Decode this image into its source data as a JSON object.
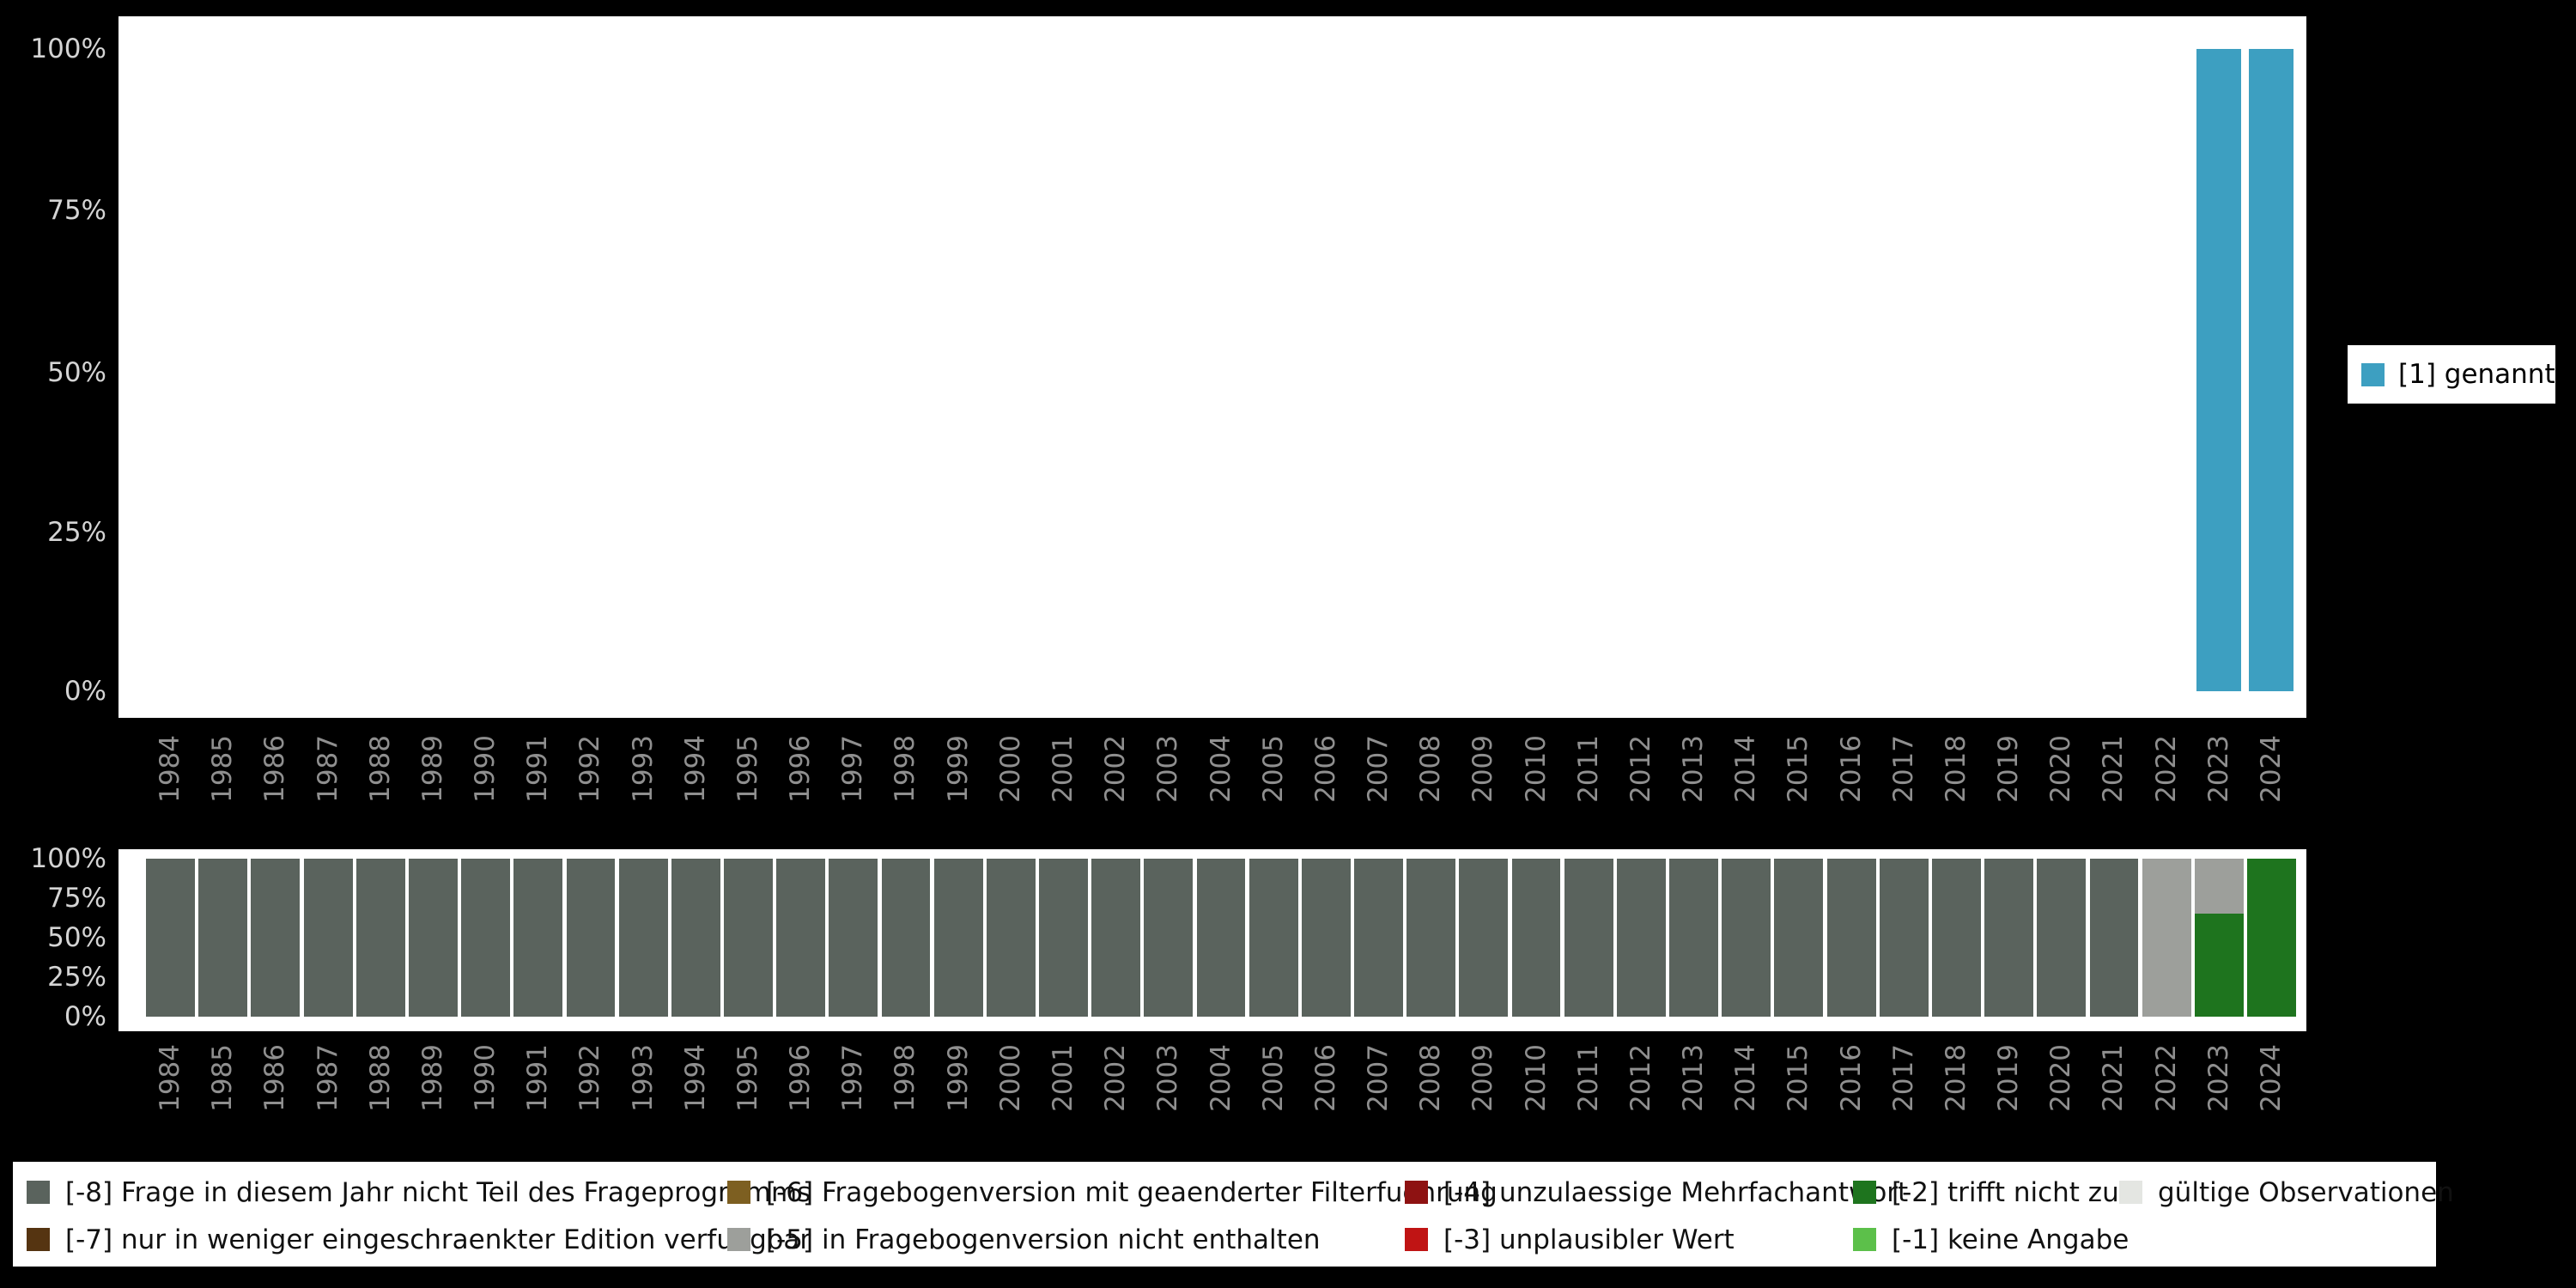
{
  "colors": {
    "background": "#000000",
    "panel": "#ffffff",
    "axis_text": "#d4d4d4",
    "year_text": "#8f8f8f"
  },
  "years": [
    "1984",
    "1985",
    "1986",
    "1987",
    "1988",
    "1989",
    "1990",
    "1991",
    "1992",
    "1993",
    "1994",
    "1995",
    "1996",
    "1997",
    "1998",
    "1999",
    "2000",
    "2001",
    "2002",
    "2003",
    "2004",
    "2005",
    "2006",
    "2007",
    "2008",
    "2009",
    "2010",
    "2011",
    "2012",
    "2013",
    "2014",
    "2015",
    "2016",
    "2017",
    "2018",
    "2019",
    "2020",
    "2021",
    "2022",
    "2023",
    "2024"
  ],
  "y_ticks": [
    "100%",
    "75%",
    "50%",
    "25%",
    "0%"
  ],
  "legend_top": {
    "label": "[1] genannt",
    "color": "#3d9fc1"
  },
  "legend_bottom": {
    "items": [
      {
        "key": "minus-8",
        "label": "[-8] Frage in diesem Jahr nicht Teil des Frageprogramms",
        "color": "#5a635d"
      },
      {
        "key": "minus-6",
        "label": "[-6] Fragebogenversion mit geaenderter Filterfuehrung",
        "color": "#7d5f21"
      },
      {
        "key": "minus-4",
        "label": "[-4] unzulaessige Mehrfachantwort",
        "color": "#8e1212"
      },
      {
        "key": "minus-2",
        "label": "[-2] trifft nicht zu",
        "color": "#1e741e"
      },
      {
        "key": "valid",
        "label": "gültige Observationen",
        "color": "#e4e6e2"
      },
      {
        "key": "minus-7",
        "label": "[-7] nur in weniger eingeschraenkter Edition verfuegbar",
        "color": "#553411"
      },
      {
        "key": "minus-5",
        "label": "[-5] in Fragebogenversion nicht enthalten",
        "color": "#9d9f9b"
      },
      {
        "key": "minus-3",
        "label": "[-3] unplausibler Wert",
        "color": "#c01414"
      },
      {
        "key": "minus-1",
        "label": "[-1] keine Angabe",
        "color": "#5cc04a"
      }
    ]
  },
  "chart_data": [
    {
      "type": "bar",
      "title": "",
      "xlabel": "",
      "ylabel": "",
      "ylim": [
        0,
        100
      ],
      "grid": false,
      "legend_position": "right",
      "y_tick_labels": [
        "0%",
        "25%",
        "50%",
        "75%",
        "100%"
      ],
      "categories": [
        "1984",
        "1985",
        "1986",
        "1987",
        "1988",
        "1989",
        "1990",
        "1991",
        "1992",
        "1993",
        "1994",
        "1995",
        "1996",
        "1997",
        "1998",
        "1999",
        "2000",
        "2001",
        "2002",
        "2003",
        "2004",
        "2005",
        "2006",
        "2007",
        "2008",
        "2009",
        "2010",
        "2011",
        "2012",
        "2013",
        "2014",
        "2015",
        "2016",
        "2017",
        "2018",
        "2019",
        "2020",
        "2021",
        "2022",
        "2023",
        "2024"
      ],
      "series": [
        {
          "name": "[1] genannt",
          "key": "genannt",
          "color": "#3d9fc1",
          "values": [
            0,
            0,
            0,
            0,
            0,
            0,
            0,
            0,
            0,
            0,
            0,
            0,
            0,
            0,
            0,
            0,
            0,
            0,
            0,
            0,
            0,
            0,
            0,
            0,
            0,
            0,
            0,
            0,
            0,
            0,
            0,
            0,
            0,
            0,
            0,
            0,
            0,
            0,
            0,
            100,
            100
          ]
        }
      ]
    },
    {
      "type": "bar",
      "stacked": true,
      "title": "",
      "xlabel": "",
      "ylabel": "",
      "ylim": [
        0,
        100
      ],
      "grid": false,
      "legend_position": "bottom",
      "y_tick_labels": [
        "0%",
        "25%",
        "50%",
        "75%",
        "100%"
      ],
      "categories": [
        "1984",
        "1985",
        "1986",
        "1987",
        "1988",
        "1989",
        "1990",
        "1991",
        "1992",
        "1993",
        "1994",
        "1995",
        "1996",
        "1997",
        "1998",
        "1999",
        "2000",
        "2001",
        "2002",
        "2003",
        "2004",
        "2005",
        "2006",
        "2007",
        "2008",
        "2009",
        "2010",
        "2011",
        "2012",
        "2013",
        "2014",
        "2015",
        "2016",
        "2017",
        "2018",
        "2019",
        "2020",
        "2021",
        "2022",
        "2023",
        "2024"
      ],
      "series": [
        {
          "name": "[-2] trifft nicht zu",
          "key": "minus-2",
          "color": "#1e741e",
          "values": [
            0,
            0,
            0,
            0,
            0,
            0,
            0,
            0,
            0,
            0,
            0,
            0,
            0,
            0,
            0,
            0,
            0,
            0,
            0,
            0,
            0,
            0,
            0,
            0,
            0,
            0,
            0,
            0,
            0,
            0,
            0,
            0,
            0,
            0,
            0,
            0,
            0,
            0,
            0,
            65,
            100
          ]
        },
        {
          "name": "[-5] in Fragebogenversion nicht enthalten",
          "key": "minus-5",
          "color": "#9d9f9b",
          "values": [
            0,
            0,
            0,
            0,
            0,
            0,
            0,
            0,
            0,
            0,
            0,
            0,
            0,
            0,
            0,
            0,
            0,
            0,
            0,
            0,
            0,
            0,
            0,
            0,
            0,
            0,
            0,
            0,
            0,
            0,
            0,
            0,
            0,
            0,
            0,
            0,
            0,
            0,
            100,
            35,
            0
          ]
        },
        {
          "name": "[-8] Frage in diesem Jahr nicht Teil des Frageprogramms",
          "key": "minus-8",
          "color": "#5a635d",
          "values": [
            100,
            100,
            100,
            100,
            100,
            100,
            100,
            100,
            100,
            100,
            100,
            100,
            100,
            100,
            100,
            100,
            100,
            100,
            100,
            100,
            100,
            100,
            100,
            100,
            100,
            100,
            100,
            100,
            100,
            100,
            100,
            100,
            100,
            100,
            100,
            100,
            100,
            100,
            0,
            0,
            0
          ]
        }
      ]
    }
  ]
}
